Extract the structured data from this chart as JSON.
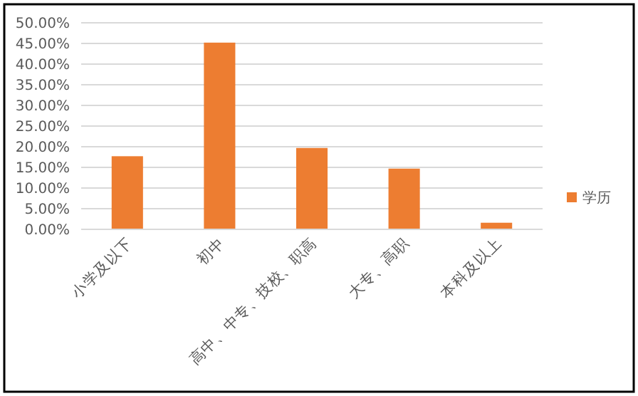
{
  "chart_data": {
    "type": "bar",
    "categories": [
      "小学及以下",
      "初中",
      "高中、中专、技校、职高",
      "大专、高职",
      "本科及以上"
    ],
    "series": [
      {
        "name": "学历",
        "color": "#ed7d31",
        "values": [
          17.7,
          45.2,
          19.7,
          14.7,
          1.6
        ]
      }
    ],
    "ylim": [
      0,
      50
    ],
    "yticks": [
      {
        "value": 0,
        "label": "0.00%"
      },
      {
        "value": 5,
        "label": "5.00%"
      },
      {
        "value": 10,
        "label": "10.00%"
      },
      {
        "value": 15,
        "label": "15.00%"
      },
      {
        "value": 20,
        "label": "20.00%"
      },
      {
        "value": 25,
        "label": "25.00%"
      },
      {
        "value": 30,
        "label": "30.00%"
      },
      {
        "value": 35,
        "label": "35.00%"
      },
      {
        "value": 40,
        "label": "40.00%"
      },
      {
        "value": 45,
        "label": "45.00%"
      },
      {
        "value": 50,
        "label": "50.00%"
      }
    ],
    "grid": "y",
    "legend": "right"
  }
}
